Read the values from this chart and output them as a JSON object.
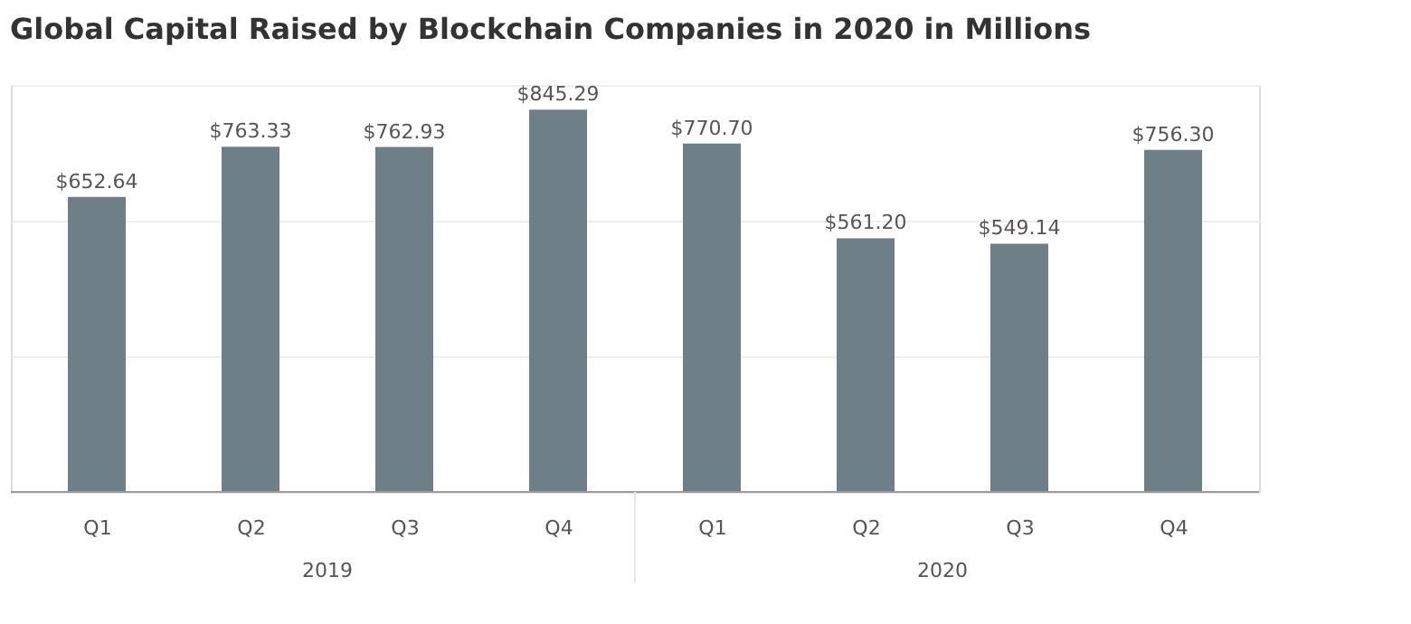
{
  "chart_data": {
    "type": "bar",
    "title": "Global Capital Raised by Blockchain Companies in 2020 in Millions",
    "categories": [
      "Q1",
      "Q2",
      "Q3",
      "Q4",
      "Q1",
      "Q2",
      "Q3",
      "Q4"
    ],
    "values": [
      652.64,
      763.33,
      762.93,
      845.29,
      770.7,
      561.2,
      549.14,
      756.3
    ],
    "value_labels": [
      "$652.64",
      "$763.33",
      "$762.93",
      "$845.29",
      "$770.70",
      "$561.20",
      "$549.14",
      "$756.30"
    ],
    "color": "#6e7f87",
    "ylim": [
      0,
      900
    ],
    "yticks": [
      {
        "value": 0,
        "label": null
      },
      {
        "value": 300,
        "label": null
      },
      {
        "value": 600,
        "label": null
      },
      {
        "value": 900,
        "label": null
      }
    ],
    "grid": "y",
    "tick_labels": "x",
    "annotations": [
      "2019",
      "2020"
    ]
  }
}
